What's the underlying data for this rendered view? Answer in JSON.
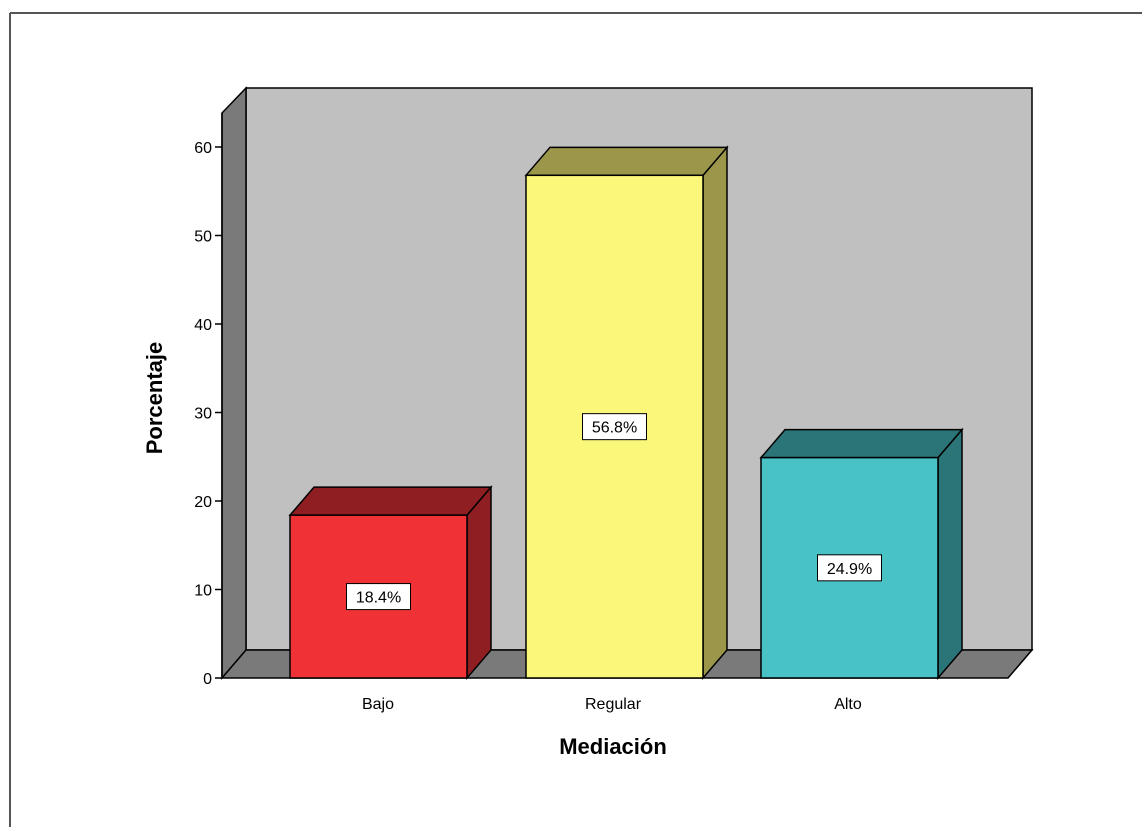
{
  "chart_data": {
    "type": "bar",
    "title": "",
    "xlabel": "Mediación",
    "ylabel": "Porcentaje",
    "ylim": [
      0,
      60
    ],
    "yticks": [
      0,
      10,
      20,
      30,
      40,
      50,
      60
    ],
    "grid": false,
    "style": "3d",
    "categories": [
      "Bajo",
      "Regular",
      "Alto"
    ],
    "values": [
      18.4,
      56.8,
      24.9
    ],
    "data_labels": [
      "18.4%",
      "56.8%",
      "24.9%"
    ],
    "colors": {
      "fronts": [
        "#f03237",
        "#fbf77b",
        "#48c2c5"
      ],
      "sides": [
        "#8f1e22",
        "#9b964a",
        "#2b7477"
      ],
      "plot_background": "#c0c0c0",
      "walls": "#7a7a7a"
    }
  }
}
